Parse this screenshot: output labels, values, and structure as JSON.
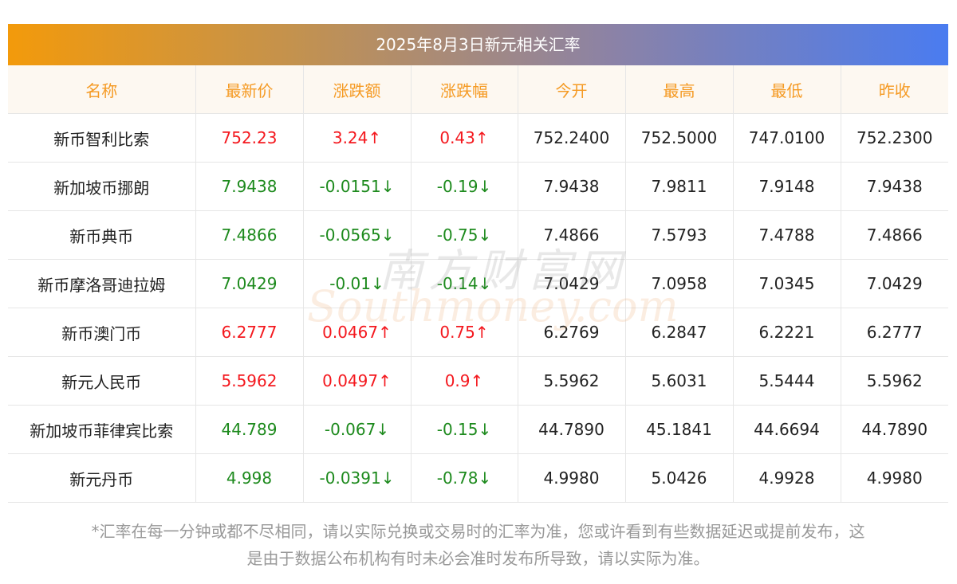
{
  "title": "2025年8月3日新元相关汇率",
  "columns": [
    "名称",
    "最新价",
    "涨跌额",
    "涨跌幅",
    "今开",
    "最高",
    "最低",
    "昨收"
  ],
  "rows": [
    {
      "name": "新币智利比索",
      "latest": "752.23",
      "change": "3.24↑",
      "pct": "0.43↑",
      "open": "752.2400",
      "high": "752.5000",
      "low": "747.0100",
      "prev": "752.2300",
      "trend": "up"
    },
    {
      "name": "新加坡币挪朗",
      "latest": "7.9438",
      "change": "-0.0151↓",
      "pct": "-0.19↓",
      "open": "7.9438",
      "high": "7.9811",
      "low": "7.9148",
      "prev": "7.9438",
      "trend": "down"
    },
    {
      "name": "新币典币",
      "latest": "7.4866",
      "change": "-0.0565↓",
      "pct": "-0.75↓",
      "open": "7.4866",
      "high": "7.5793",
      "low": "7.4788",
      "prev": "7.4866",
      "trend": "down"
    },
    {
      "name": "新币摩洛哥迪拉姆",
      "latest": "7.0429",
      "change": "-0.01↓",
      "pct": "-0.14↓",
      "open": "7.0429",
      "high": "7.0958",
      "low": "7.0345",
      "prev": "7.0429",
      "trend": "down"
    },
    {
      "name": "新币澳门币",
      "latest": "6.2777",
      "change": "0.0467↑",
      "pct": "0.75↑",
      "open": "6.2769",
      "high": "6.2847",
      "low": "6.2221",
      "prev": "6.2777",
      "trend": "up"
    },
    {
      "name": "新元人民币",
      "latest": "5.5962",
      "change": "0.0497↑",
      "pct": "0.9↑",
      "open": "5.5962",
      "high": "5.6031",
      "low": "5.5444",
      "prev": "5.5962",
      "trend": "up"
    },
    {
      "name": "新加坡币菲律宾比索",
      "latest": "44.789",
      "change": "-0.067↓",
      "pct": "-0.15↓",
      "open": "44.7890",
      "high": "45.1841",
      "low": "44.6694",
      "prev": "44.7890",
      "trend": "down"
    },
    {
      "name": "新元丹币",
      "latest": "4.998",
      "change": "-0.0391↓",
      "pct": "-0.78↓",
      "open": "4.9980",
      "high": "5.0426",
      "low": "4.9928",
      "prev": "4.9980",
      "trend": "down"
    }
  ],
  "watermark": {
    "cn": "南方财富网",
    "en": "Southmoney.com"
  },
  "footnote_line1": "*汇率在每一分钟或都不尽相同，请以实际兑换或交易时的汇率为准，您或许看到有些数据延迟或提前发布，这",
  "footnote_line2": "是由于数据公布机构有时未必会准时发布所导致，请以实际为准。",
  "colors": {
    "up": "#f4181e",
    "down": "#1d8a1d",
    "header_text": "#f59a23",
    "header_bg": "#fdf8f1"
  }
}
